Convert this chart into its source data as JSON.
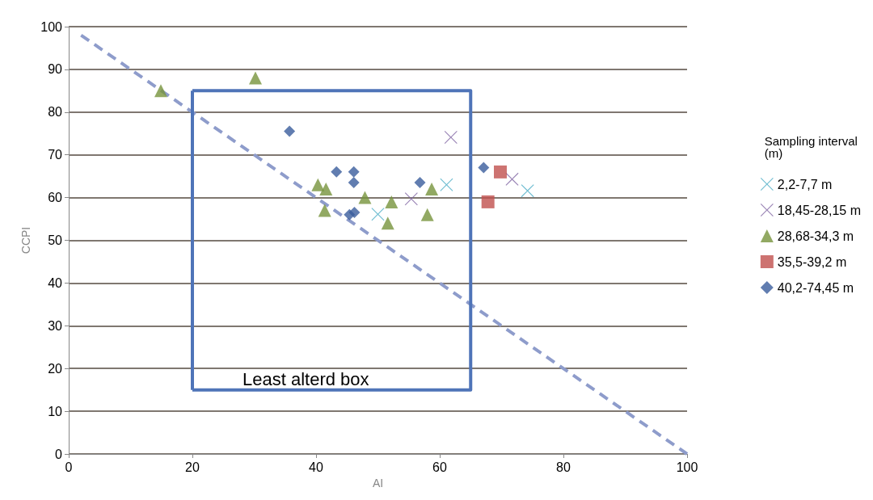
{
  "chart_data": {
    "type": "scatter",
    "xlabel": "AI",
    "ylabel": "CCPI",
    "legend_title": "Sampling interval (m)",
    "legend": "right",
    "grid": "y",
    "xlim": [
      0,
      100
    ],
    "xticks": [
      0,
      20,
      40,
      60,
      80,
      100
    ],
    "ylim": [
      0,
      100
    ],
    "yticks": [
      0,
      10,
      20,
      30,
      40,
      50,
      60,
      70,
      80,
      90,
      100
    ],
    "series": [
      {
        "name": "2,2-7,7 m",
        "color": "#4bacc6",
        "marker": "cross",
        "x": [
          50.0,
          61.1,
          74.2
        ],
        "values": [
          56.1,
          63.0,
          61.6
        ]
      },
      {
        "name": "18,45-28,15 m",
        "color": "#8064a2",
        "marker": "cross",
        "x": [
          61.8,
          55.4,
          71.7
        ],
        "values": [
          74.1,
          59.7,
          64.3
        ]
      },
      {
        "name": "28,68-34,3 m",
        "color": "#77933c",
        "marker": "triangle",
        "x": [
          14.9,
          30.2,
          40.3,
          41.6,
          41.4,
          47.9,
          51.6,
          52.2,
          58.0,
          58.7
        ],
        "values": [
          85,
          88,
          63,
          62,
          57,
          60,
          54,
          59,
          56,
          62
        ]
      },
      {
        "name": "35,5-39,2 m",
        "color": "#c0504d",
        "marker": "square",
        "x": [
          69.8,
          67.8
        ],
        "values": [
          66,
          59
        ]
      },
      {
        "name": "40,2-74,45 m",
        "color": "#3a5d9c",
        "marker": "diamond",
        "x": [
          35.7,
          43.3,
          46.1,
          46.1,
          45.4,
          46.2,
          56.8,
          67.1
        ],
        "values": [
          75.5,
          66,
          66,
          63.5,
          56,
          56.5,
          63.5,
          67
        ]
      },
      {
        "type": "line",
        "color": "#8e9ccb",
        "line_style": "dashed",
        "x": [
          2,
          100
        ],
        "values": [
          98,
          0
        ]
      },
      {
        "type": "line",
        "color": "#4f74b8",
        "line_style": "solid",
        "x": [
          20,
          65,
          65,
          20
        ],
        "values": [
          85,
          85,
          15,
          15
        ]
      },
      {
        "type": "line",
        "color": "#4f74b8",
        "line_style": "solid",
        "x": [
          20,
          20
        ],
        "values": [
          15,
          85
        ]
      }
    ],
    "annotations": [
      "Least alterd box"
    ]
  }
}
